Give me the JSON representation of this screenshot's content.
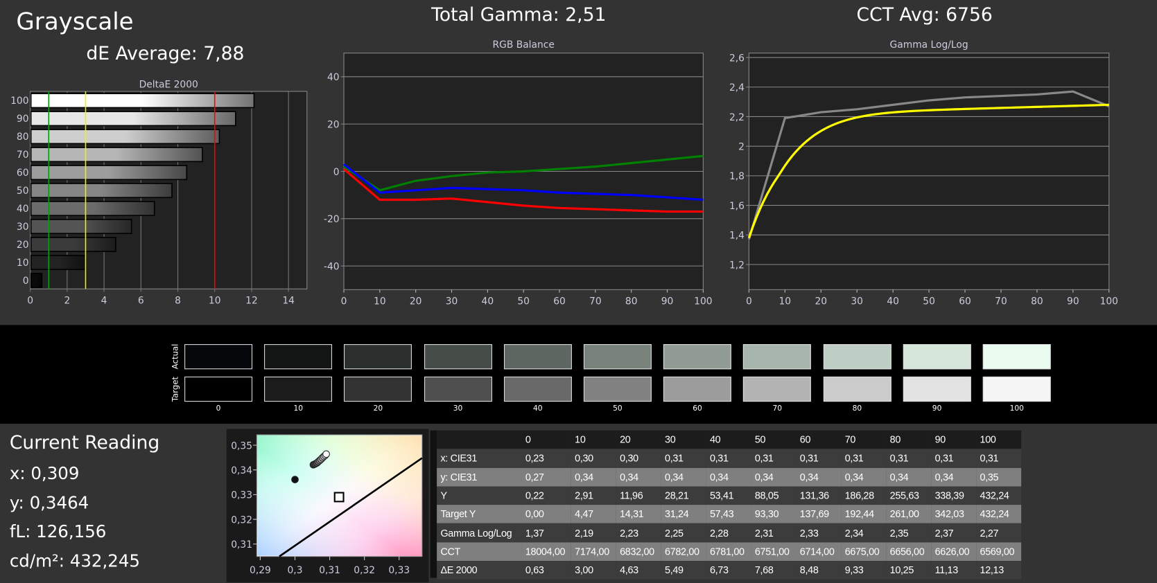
{
  "header": {
    "title": "Grayscale",
    "de_average": "dE Average: 7,88",
    "total_gamma": "Total Gamma: 2,51",
    "cct_avg": "CCT Avg: 6756"
  },
  "chart_data": [
    {
      "type": "bar",
      "orientation": "horizontal",
      "title": "DeltaE 2000",
      "categories": [
        "0",
        "10",
        "20",
        "30",
        "40",
        "50",
        "60",
        "70",
        "80",
        "90",
        "100"
      ],
      "values": [
        0.63,
        3.0,
        4.63,
        5.49,
        6.73,
        7.68,
        8.48,
        9.33,
        10.25,
        11.13,
        12.13
      ],
      "xlim": [
        0,
        15
      ],
      "xticks": [
        "0",
        "2",
        "4",
        "6",
        "8",
        "10",
        "12",
        "14"
      ],
      "thresholds": [
        {
          "value": 1,
          "color": "#00a000"
        },
        {
          "value": 3,
          "color": "#f0f000"
        },
        {
          "value": 10,
          "color": "#ff0000"
        }
      ],
      "grid": true
    },
    {
      "type": "line",
      "title": "RGB Balance",
      "x": [
        0,
        10,
        20,
        30,
        40,
        50,
        60,
        70,
        80,
        90,
        100
      ],
      "series": [
        {
          "color": "#008000",
          "values": [
            2,
            -8,
            -4,
            -2,
            -0.5,
            0,
            1,
            2,
            3.5,
            5,
            6.5
          ]
        },
        {
          "color": "#0000ff",
          "values": [
            3,
            -9,
            -8,
            -7,
            -7.5,
            -8,
            -9,
            -9.5,
            -10,
            -11,
            -12
          ]
        },
        {
          "color": "#ff0000",
          "values": [
            1,
            -12,
            -12,
            -11.5,
            -13,
            -14.5,
            -15.5,
            -16,
            -16.5,
            -17,
            -17
          ]
        }
      ],
      "ylim": [
        -50,
        50
      ],
      "yticks": [
        "40",
        "20",
        "0",
        "-20",
        "-40"
      ],
      "xticks": [
        "0",
        "10",
        "20",
        "30",
        "40",
        "50",
        "60",
        "70",
        "80",
        "90",
        "100"
      ],
      "grid": true
    },
    {
      "type": "line",
      "title": "Gamma Log/Log",
      "x": [
        0,
        10,
        20,
        30,
        40,
        50,
        60,
        70,
        80,
        90,
        100
      ],
      "series": [
        {
          "color": "#888888",
          "values": [
            1.37,
            2.19,
            2.23,
            2.25,
            2.28,
            2.31,
            2.33,
            2.34,
            2.35,
            2.37,
            2.27
          ]
        },
        {
          "color": "#ffff00",
          "curve": "target",
          "values": [
            1.38,
            2.0,
            2.12,
            2.17,
            2.2,
            2.22,
            2.24,
            2.25,
            2.26,
            2.27,
            2.28
          ]
        }
      ],
      "ylim": [
        1.03,
        2.63
      ],
      "yticks": [
        "2,6",
        "2,4",
        "2,2",
        "2",
        "1,8",
        "1,6",
        "1,4",
        "1,2"
      ],
      "xticks": [
        "0",
        "10",
        "20",
        "30",
        "40",
        "50",
        "60",
        "70",
        "80",
        "90",
        "100"
      ],
      "grid": true
    },
    {
      "type": "scatter",
      "title": "",
      "xlim": [
        0.289,
        0.3366
      ],
      "ylim": [
        0.305,
        0.3542
      ],
      "xticks": [
        "0,29",
        "0,3",
        "0,31",
        "0,32",
        "0,33"
      ],
      "yticks": [
        "0,35",
        "0,34",
        "0,33",
        "0,32",
        "0,31"
      ],
      "points": [
        {
          "x": 0.3,
          "y": 0.3361,
          "gray": "#111111"
        },
        {
          "x": 0.3053,
          "y": 0.3421,
          "gray": "#333333"
        },
        {
          "x": 0.3058,
          "y": 0.3424,
          "gray": "#444444"
        },
        {
          "x": 0.3063,
          "y": 0.3428,
          "gray": "#555555"
        },
        {
          "x": 0.3067,
          "y": 0.3433,
          "gray": "#777777"
        },
        {
          "x": 0.3071,
          "y": 0.3438,
          "gray": "#888888"
        },
        {
          "x": 0.3075,
          "y": 0.3443,
          "gray": "#aaaaaa"
        },
        {
          "x": 0.3079,
          "y": 0.3449,
          "gray": "#bbbbbb"
        },
        {
          "x": 0.3083,
          "y": 0.3454,
          "gray": "#cccccc"
        },
        {
          "x": 0.3087,
          "y": 0.3459,
          "gray": "#e6e6e6"
        },
        {
          "x": 0.309,
          "y": 0.3464,
          "gray": "#ffffff"
        }
      ],
      "target": {
        "x": 0.3127,
        "y": 0.329
      },
      "locus": [
        {
          "x": 0.2955,
          "y": 0.305
        },
        {
          "x": 0.3366,
          "y": 0.3448
        }
      ]
    }
  ],
  "swatches": {
    "actual_label": "Actual",
    "target_label": "Target",
    "labels": [
      "0",
      "10",
      "20",
      "30",
      "40",
      "50",
      "60",
      "70",
      "80",
      "90",
      "100"
    ],
    "actual": [
      "#05070a",
      "#121514",
      "#2b302e",
      "#464c48",
      "#5d6660",
      "#77827a",
      "#909c94",
      "#a8b5ac",
      "#bfcec4",
      "#d6e6db",
      "#eafcf0"
    ],
    "target": [
      "#000000",
      "#1c1c1c",
      "#333333",
      "#4f4f4f",
      "#696969",
      "#828282",
      "#9c9c9c",
      "#b3b3b3",
      "#cbcbcb",
      "#e3e3e3",
      "#f5f5f5"
    ]
  },
  "current_reading": {
    "title": "Current Reading",
    "x": "x: 0,309",
    "y": "y: 0,3464",
    "fl": "fL: 126,156",
    "cdm2": "cd/m²: 432,245"
  },
  "table": {
    "headers": [
      "",
      "0",
      "10",
      "20",
      "30",
      "40",
      "50",
      "60",
      "70",
      "80",
      "90",
      "100"
    ],
    "rows": [
      [
        "x: CIE31",
        "0,23",
        "0,30",
        "0,30",
        "0,31",
        "0,31",
        "0,31",
        "0,31",
        "0,31",
        "0,31",
        "0,31",
        "0,31"
      ],
      [
        "y: CIE31",
        "0,27",
        "0,34",
        "0,34",
        "0,34",
        "0,34",
        "0,34",
        "0,34",
        "0,34",
        "0,34",
        "0,34",
        "0,35"
      ],
      [
        "Y",
        "0,22",
        "2,91",
        "11,96",
        "28,21",
        "53,41",
        "88,05",
        "131,36",
        "186,28",
        "255,63",
        "338,39",
        "432,24"
      ],
      [
        "Target Y",
        "0,00",
        "4,47",
        "14,31",
        "31,24",
        "57,43",
        "93,30",
        "137,69",
        "192,44",
        "261,00",
        "342,03",
        "432,24"
      ],
      [
        "Gamma Log/Log",
        "1,37",
        "2,19",
        "2,23",
        "2,25",
        "2,28",
        "2,31",
        "2,33",
        "2,34",
        "2,35",
        "2,37",
        "2,27"
      ],
      [
        "CCT",
        "18004,00",
        "7174,00",
        "6832,00",
        "6782,00",
        "6781,00",
        "6751,00",
        "6714,00",
        "6675,00",
        "6656,00",
        "6626,00",
        "6569,00"
      ],
      [
        "ΔE 2000",
        "0,63",
        "3,00",
        "4,63",
        "5,49",
        "6,73",
        "7,68",
        "8,48",
        "9,33",
        "10,25",
        "11,13",
        "12,13"
      ]
    ]
  }
}
